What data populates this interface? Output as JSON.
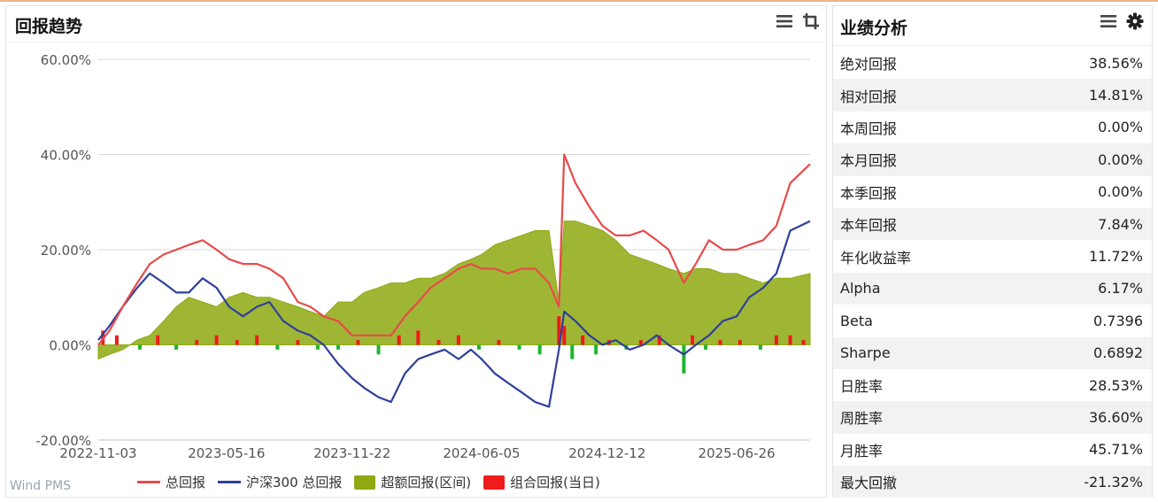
{
  "left_panel": {
    "title": "回报趋势",
    "watermark": "Wind PMS",
    "icons": [
      "menu-icon",
      "crop-icon"
    ]
  },
  "right_panel": {
    "title": "业绩分析",
    "icons": [
      "menu-icon",
      "gear-icon"
    ],
    "rows": [
      {
        "label": "绝对回报",
        "value": "38.56%"
      },
      {
        "label": "相对回报",
        "value": "14.81%"
      },
      {
        "label": "本周回报",
        "value": "0.00%"
      },
      {
        "label": "本月回报",
        "value": "0.00%"
      },
      {
        "label": "本季回报",
        "value": "0.00%"
      },
      {
        "label": "本年回报",
        "value": "7.84%"
      },
      {
        "label": "年化收益率",
        "value": "11.72%"
      },
      {
        "label": "Alpha",
        "value": "6.17%"
      },
      {
        "label": "Beta",
        "value": "0.7396"
      },
      {
        "label": "Sharpe",
        "value": "0.6892"
      },
      {
        "label": "日胜率",
        "value": "28.53%"
      },
      {
        "label": "周胜率",
        "value": "36.60%"
      },
      {
        "label": "月胜率",
        "value": "45.71%"
      },
      {
        "label": "最大回撤",
        "value": "-21.32%"
      }
    ]
  },
  "chart_data": {
    "type": "line",
    "title": "",
    "ylim": [
      -20,
      60
    ],
    "yticks": [
      -20,
      0,
      20,
      40,
      60
    ],
    "ytick_labels": [
      "-20.00%",
      "0.00%",
      "20.00%",
      "40.00%",
      "60.00%"
    ],
    "xlim": [
      "2022-11-03",
      "2025-10-15"
    ],
    "xtick_labels": [
      "2022-11-03",
      "2023-05-16",
      "2023-11-22",
      "2024-06-05",
      "2024-12-12",
      "2025-06-26"
    ],
    "grid": true,
    "legend_position": "bottom",
    "colors": {
      "total": "#e84a4a",
      "hs300": "#2e3f9a",
      "excess": "#8ea912",
      "daily": "#ee1c1c",
      "daily_neg": "#1fb52e"
    },
    "series": [
      {
        "name": "总回报",
        "x": [
          "2022-11-03",
          "2022-11-20",
          "2022-12-10",
          "2023-01-01",
          "2023-01-20",
          "2023-02-10",
          "2023-03-01",
          "2023-03-20",
          "2023-04-10",
          "2023-05-01",
          "2023-05-20",
          "2023-06-10",
          "2023-07-01",
          "2023-07-20",
          "2023-08-10",
          "2023-09-01",
          "2023-09-20",
          "2023-10-10",
          "2023-11-01",
          "2023-11-22",
          "2023-12-10",
          "2024-01-01",
          "2024-01-20",
          "2024-02-10",
          "2024-03-01",
          "2024-03-20",
          "2024-04-10",
          "2024-05-01",
          "2024-05-20",
          "2024-06-05",
          "2024-06-25",
          "2024-07-15",
          "2024-08-05",
          "2024-08-25",
          "2024-09-15",
          "2024-09-30",
          "2024-10-08",
          "2024-10-25",
          "2024-11-15",
          "2024-12-05",
          "2024-12-25",
          "2025-01-15",
          "2025-02-05",
          "2025-02-25",
          "2025-03-15",
          "2025-04-07",
          "2025-04-25",
          "2025-05-15",
          "2025-06-05",
          "2025-06-26",
          "2025-07-15",
          "2025-08-05",
          "2025-08-25",
          "2025-09-15",
          "2025-10-15"
        ],
        "values": [
          0,
          3,
          8,
          13,
          17,
          19,
          20,
          21,
          22,
          20,
          18,
          17,
          17,
          16,
          14,
          9,
          8,
          6,
          5,
          2,
          2,
          2,
          2,
          6,
          9,
          12,
          14,
          16,
          17,
          16,
          16,
          15,
          16,
          16,
          13,
          8,
          40,
          34,
          29,
          25,
          23,
          23,
          24,
          22,
          20,
          13,
          17,
          22,
          20,
          20,
          21,
          22,
          25,
          34,
          38
        ]
      },
      {
        "name": "沪深300 总回报",
        "x": [
          "2022-11-03",
          "2022-11-20",
          "2022-12-10",
          "2023-01-01",
          "2023-01-20",
          "2023-02-10",
          "2023-03-01",
          "2023-03-20",
          "2023-04-10",
          "2023-05-01",
          "2023-05-20",
          "2023-06-10",
          "2023-07-01",
          "2023-07-20",
          "2023-08-10",
          "2023-09-01",
          "2023-09-20",
          "2023-10-10",
          "2023-11-01",
          "2023-11-22",
          "2023-12-10",
          "2024-01-01",
          "2024-01-20",
          "2024-02-10",
          "2024-03-01",
          "2024-03-20",
          "2024-04-10",
          "2024-05-01",
          "2024-05-20",
          "2024-06-05",
          "2024-06-25",
          "2024-07-15",
          "2024-08-05",
          "2024-08-25",
          "2024-09-15",
          "2024-09-30",
          "2024-10-08",
          "2024-10-25",
          "2024-11-15",
          "2024-12-05",
          "2024-12-25",
          "2025-01-15",
          "2025-02-05",
          "2025-02-25",
          "2025-03-15",
          "2025-04-07",
          "2025-04-25",
          "2025-05-15",
          "2025-06-05",
          "2025-06-26",
          "2025-07-15",
          "2025-08-05",
          "2025-08-25",
          "2025-09-15",
          "2025-10-15"
        ],
        "values": [
          1,
          4,
          8,
          12,
          15,
          13,
          11,
          11,
          14,
          12,
          8,
          6,
          8,
          9,
          5,
          3,
          2,
          0,
          -4,
          -7,
          -9,
          -11,
          -12,
          -6,
          -3,
          -2,
          -1,
          -3,
          -1,
          -3,
          -6,
          -8,
          -10,
          -12,
          -13,
          -1,
          7,
          5,
          2,
          0,
          1,
          -1,
          0,
          2,
          0,
          -2,
          0,
          2,
          5,
          6,
          10,
          12,
          15,
          24,
          26
        ]
      },
      {
        "name": "超额回报(区间)",
        "x": [
          "2022-11-03",
          "2022-11-20",
          "2022-12-10",
          "2023-01-01",
          "2023-01-20",
          "2023-02-10",
          "2023-03-01",
          "2023-03-20",
          "2023-04-10",
          "2023-05-01",
          "2023-05-20",
          "2023-06-10",
          "2023-07-01",
          "2023-07-20",
          "2023-08-10",
          "2023-09-01",
          "2023-09-20",
          "2023-10-10",
          "2023-11-01",
          "2023-11-22",
          "2023-12-10",
          "2024-01-01",
          "2024-01-20",
          "2024-02-10",
          "2024-03-01",
          "2024-03-20",
          "2024-04-10",
          "2024-05-01",
          "2024-05-20",
          "2024-06-05",
          "2024-06-25",
          "2024-07-15",
          "2024-08-05",
          "2024-08-25",
          "2024-09-15",
          "2024-09-30",
          "2024-10-08",
          "2024-10-25",
          "2024-11-15",
          "2024-12-05",
          "2024-12-25",
          "2025-01-15",
          "2025-02-05",
          "2025-02-25",
          "2025-03-15",
          "2025-04-07",
          "2025-04-25",
          "2025-05-15",
          "2025-06-05",
          "2025-06-26",
          "2025-07-15",
          "2025-08-05",
          "2025-08-25",
          "2025-09-15",
          "2025-10-15"
        ],
        "values": [
          -3,
          -2,
          -1,
          1,
          2,
          5,
          8,
          10,
          9,
          8,
          10,
          11,
          10,
          10,
          9,
          8,
          7,
          6,
          9,
          9,
          11,
          12,
          13,
          13,
          14,
          14,
          15,
          17,
          18,
          19,
          21,
          22,
          23,
          24,
          24,
          9,
          26,
          26,
          25,
          24,
          22,
          19,
          18,
          17,
          16,
          15,
          16,
          16,
          15,
          15,
          14,
          13,
          14,
          14,
          15
        ]
      },
      {
        "name": "组合回报(当日)",
        "x": [
          "2022-11-10",
          "2022-12-01",
          "2023-01-05",
          "2023-02-01",
          "2023-03-01",
          "2023-04-01",
          "2023-05-01",
          "2023-06-01",
          "2023-07-01",
          "2023-08-01",
          "2023-09-01",
          "2023-10-01",
          "2023-11-01",
          "2023-12-01",
          "2024-01-01",
          "2024-02-01",
          "2024-03-01",
          "2024-04-01",
          "2024-05-01",
          "2024-06-01",
          "2024-07-01",
          "2024-08-01",
          "2024-09-01",
          "2024-09-30",
          "2024-10-08",
          "2024-10-20",
          "2024-11-05",
          "2024-11-25",
          "2024-12-15",
          "2025-01-10",
          "2025-02-01",
          "2025-03-01",
          "2025-04-07",
          "2025-04-20",
          "2025-05-10",
          "2025-06-01",
          "2025-07-01",
          "2025-08-01",
          "2025-08-25",
          "2025-09-15",
          "2025-10-05"
        ],
        "values": [
          3,
          2,
          -1,
          2,
          -1,
          1,
          2,
          1,
          2,
          -1,
          1,
          -1,
          -1,
          1,
          -2,
          2,
          3,
          1,
          2,
          -1,
          1,
          -1,
          -2,
          6,
          4,
          -3,
          2,
          -2,
          1,
          -1,
          1,
          2,
          -6,
          2,
          -1,
          1,
          1,
          -1,
          2,
          2,
          1
        ]
      }
    ]
  }
}
